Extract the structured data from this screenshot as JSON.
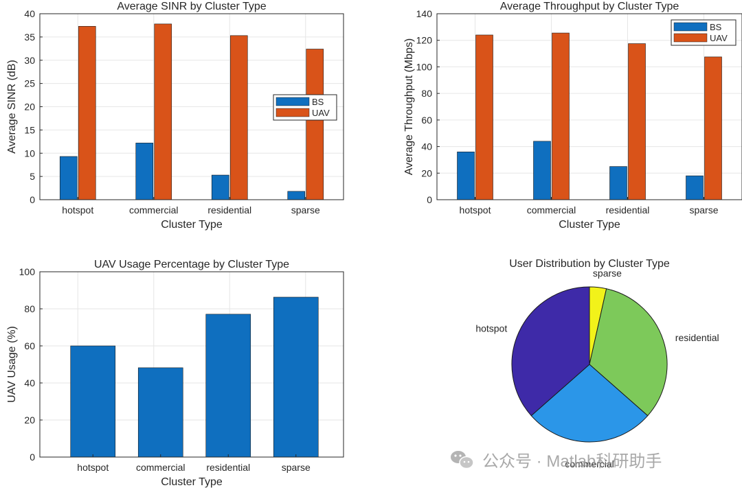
{
  "chart_data": [
    {
      "type": "bar",
      "title": "Average SINR by Cluster Type",
      "xlabel": "Cluster Type",
      "ylabel": "Average SINR (dB)",
      "categories": [
        "hotspot",
        "commercial",
        "residential",
        "sparse"
      ],
      "series": [
        {
          "name": "BS",
          "values": [
            9.3,
            12.2,
            5.3,
            1.8
          ]
        },
        {
          "name": "UAV",
          "values": [
            37.3,
            37.8,
            35.3,
            32.4
          ]
        }
      ],
      "ylim": [
        0,
        40
      ],
      "yticks": [
        0,
        5,
        10,
        15,
        20,
        25,
        30,
        35,
        40
      ],
      "grid": true,
      "legend": "east"
    },
    {
      "type": "bar",
      "title": "Average Throughput by Cluster Type",
      "xlabel": "Cluster Type",
      "ylabel": "Average Throughput (Mbps)",
      "categories": [
        "hotspot",
        "commercial",
        "residential",
        "sparse"
      ],
      "series": [
        {
          "name": "BS",
          "values": [
            36,
            44,
            25,
            18
          ]
        },
        {
          "name": "UAV",
          "values": [
            124,
            125.5,
            117.5,
            107.5
          ]
        }
      ],
      "ylim": [
        0,
        140
      ],
      "yticks": [
        0,
        20,
        40,
        60,
        80,
        100,
        120,
        140
      ],
      "grid": true,
      "legend": "top-right"
    },
    {
      "type": "bar",
      "title": "UAV Usage Percentage by Cluster Type",
      "xlabel": "Cluster Type",
      "ylabel": "UAV Usage (%)",
      "categories": [
        "hotspot",
        "commercial",
        "residential",
        "sparse"
      ],
      "series": [
        {
          "values": [
            60,
            48.2,
            77.1,
            86.3
          ]
        }
      ],
      "ylim": [
        0,
        100
      ],
      "yticks": [
        0,
        20,
        40,
        60,
        80,
        100
      ],
      "grid": true
    },
    {
      "type": "pie",
      "title": "User Distribution by Cluster Type",
      "labels": [
        "sparse",
        "residential",
        "commercial",
        "hotspot"
      ],
      "values": [
        3.5,
        33,
        27,
        36.5
      ]
    }
  ],
  "colors": {
    "bs": "#0f6fbf",
    "uav": "#d95319",
    "pie": [
      "#f2f21a",
      "#7dc95a",
      "#2b96e8",
      "#3e2aa8"
    ],
    "grid": "#e6e6e6",
    "axis": "#262626"
  },
  "watermark": {
    "icon": "wechat-icon",
    "text": "公众号 · Matlab科研助手"
  }
}
